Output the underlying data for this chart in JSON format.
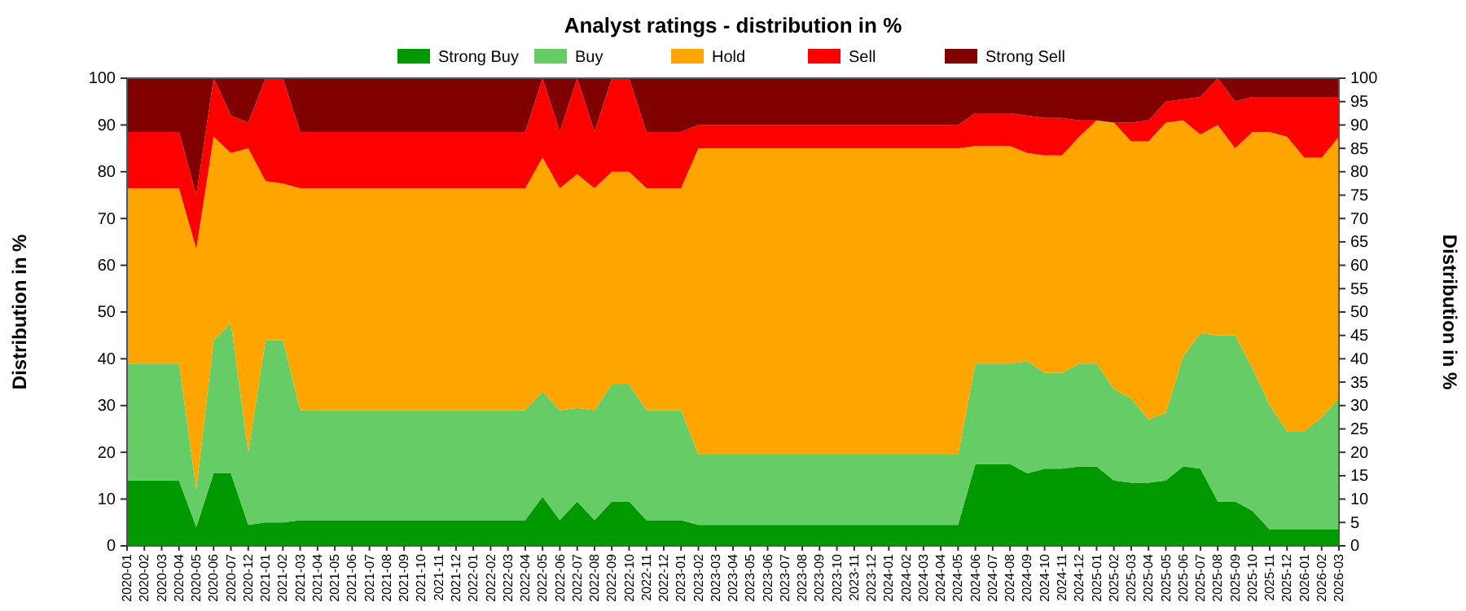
{
  "chart_data": {
    "type": "area",
    "stacked": true,
    "title": "Analyst ratings - distribution in %",
    "ylabel": "Distribution in %",
    "y2label": "Distribution in %",
    "categories": [
      "2020-01",
      "2020-02",
      "2020-03",
      "2020-04",
      "2020-05",
      "2020-06",
      "2020-07",
      "2020-12",
      "2021-01",
      "2021-02",
      "2021-03",
      "2021-04",
      "2021-05",
      "2021-06",
      "2021-07",
      "2021-08",
      "2021-09",
      "2021-10",
      "2021-11",
      "2021-12",
      "2022-01",
      "2022-02",
      "2022-03",
      "2022-04",
      "2022-05",
      "2022-06",
      "2022-07",
      "2022-08",
      "2022-09",
      "2022-10",
      "2022-11",
      "2022-12",
      "2023-01",
      "2023-02",
      "2023-03",
      "2023-04",
      "2023-05",
      "2023-06",
      "2023-07",
      "2023-08",
      "2023-09",
      "2023-10",
      "2023-11",
      "2023-12",
      "2024-01",
      "2024-02",
      "2024-03",
      "2024-04",
      "2024-05",
      "2024-06",
      "2024-07",
      "2024-08",
      "2024-09",
      "2024-10",
      "2024-11",
      "2024-12",
      "2025-01",
      "2025-02",
      "2025-03",
      "2025-04",
      "2025-05",
      "2025-06",
      "2025-07",
      "2025-08",
      "2025-09",
      "2025-10",
      "2025-11",
      "2025-12",
      "2026-01",
      "2026-02",
      "2026-03"
    ],
    "series": [
      {
        "name": "Strong Buy",
        "color": "#009900",
        "values": [
          14,
          14,
          14,
          14,
          4,
          15.5,
          15.5,
          4.5,
          5,
          5,
          5.5,
          5.5,
          5.5,
          5.5,
          5.5,
          5.5,
          5.5,
          5.5,
          5.5,
          5.5,
          5.5,
          5.5,
          5.5,
          5.5,
          10.5,
          5.5,
          9.5,
          5.5,
          9.5,
          9.5,
          5.5,
          5.5,
          5.5,
          4.5,
          4.5,
          4.5,
          4.5,
          4.5,
          4.5,
          4.5,
          4.5,
          4.5,
          4.5,
          4.5,
          4.5,
          4.5,
          4.5,
          4.5,
          4.5,
          17.5,
          17.5,
          17.5,
          15.5,
          16.5,
          16.5,
          17,
          17,
          14,
          13.5,
          13.5,
          14,
          17,
          16.5,
          9.5,
          9.5,
          7.5,
          3.5,
          3.5,
          3.5,
          3.5,
          3.5
        ]
      },
      {
        "name": "Buy",
        "color": "#66cc66",
        "values": [
          25,
          25,
          25,
          25,
          8,
          28.5,
          32,
          15.5,
          39,
          39,
          23.5,
          23.5,
          23.5,
          23.5,
          23.5,
          23.5,
          23.5,
          23.5,
          23.5,
          23.5,
          23.5,
          23.5,
          23.5,
          23.5,
          22.5,
          23.5,
          20,
          23.5,
          25,
          25,
          23.5,
          23.5,
          23.5,
          15,
          15,
          15,
          15,
          15,
          15,
          15,
          15,
          15,
          15,
          15,
          15,
          15,
          15,
          15,
          15,
          21.5,
          21.5,
          21.5,
          24,
          20.5,
          20.5,
          22,
          22,
          19.5,
          18,
          13.5,
          14.5,
          23.5,
          29,
          35.5,
          35.5,
          30.5,
          26.5,
          21,
          21,
          24,
          28
        ]
      },
      {
        "name": "Hold",
        "color": "#ffa500",
        "values": [
          37.5,
          37.5,
          37.5,
          37.5,
          51.5,
          43.5,
          36.5,
          65,
          34,
          33.5,
          47.5,
          47.5,
          47.5,
          47.5,
          47.5,
          47.5,
          47.5,
          47.5,
          47.5,
          47.5,
          47.5,
          47.5,
          47.5,
          47.5,
          50,
          47.5,
          50,
          47.5,
          45.5,
          45.5,
          47.5,
          47.5,
          47.5,
          65.5,
          65.5,
          65.5,
          65.5,
          65.5,
          65.5,
          65.5,
          65.5,
          65.5,
          65.5,
          65.5,
          65.5,
          65.5,
          65.5,
          65.5,
          65.5,
          46.5,
          46.5,
          46.5,
          44.5,
          46.5,
          46.5,
          48.5,
          52,
          57,
          55,
          59.5,
          62,
          50.5,
          42.5,
          45,
          40,
          50.5,
          58.5,
          63,
          58.5,
          55.5,
          56
        ]
      },
      {
        "name": "Sell",
        "color": "#ff0000",
        "values": [
          12,
          12,
          12,
          12,
          11.5,
          12.5,
          8,
          5.5,
          22,
          22.5,
          12,
          12,
          12,
          12,
          12,
          12,
          12,
          12,
          12,
          12,
          12,
          12,
          12,
          12,
          17,
          12,
          20.5,
          12,
          20,
          20,
          12,
          12,
          12,
          5,
          5,
          5,
          5,
          5,
          5,
          5,
          5,
          5,
          5,
          5,
          5,
          5,
          5,
          5,
          5,
          7,
          7,
          7,
          8,
          8,
          8,
          3.5,
          0,
          0,
          4,
          4.5,
          4.5,
          4.5,
          8,
          10,
          10,
          7.5,
          7.5,
          8.5,
          13,
          13,
          8.5
        ]
      },
      {
        "name": "Strong Sell",
        "color": "#800000",
        "values": [
          11.5,
          11.5,
          11.5,
          11.5,
          25,
          0,
          8,
          9.5,
          0,
          0,
          11.5,
          11.5,
          11.5,
          11.5,
          11.5,
          11.5,
          11.5,
          11.5,
          11.5,
          11.5,
          11.5,
          11.5,
          11.5,
          11.5,
          0,
          11.5,
          0,
          11.5,
          0,
          0,
          11.5,
          11.5,
          11.5,
          10,
          10,
          10,
          10,
          10,
          10,
          10,
          10,
          10,
          10,
          10,
          10,
          10,
          10,
          10,
          10,
          7.5,
          7.5,
          7.5,
          8,
          8.5,
          8.5,
          9,
          9,
          9.5,
          9.5,
          9,
          5,
          4.5,
          4,
          0,
          5,
          4,
          4,
          4,
          4,
          4,
          4
        ]
      }
    ],
    "ylim": [
      0,
      100
    ],
    "yticks": [
      0,
      10,
      20,
      30,
      40,
      50,
      60,
      70,
      80,
      90,
      100
    ],
    "y2lim": [
      0,
      100
    ],
    "y2ticks": [
      0,
      5,
      10,
      15,
      20,
      25,
      30,
      35,
      40,
      45,
      50,
      55,
      60,
      65,
      70,
      75,
      80,
      85,
      90,
      95,
      100
    ],
    "grid": "y",
    "legend": "top"
  }
}
